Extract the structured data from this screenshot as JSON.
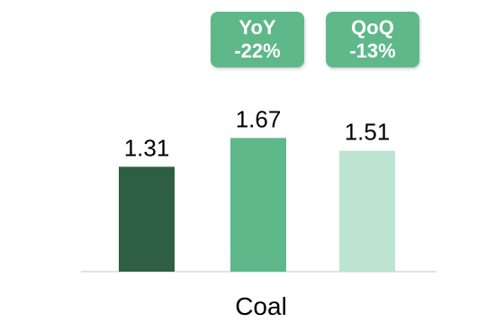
{
  "chart_data": {
    "type": "bar",
    "categories": [
      "Coal"
    ],
    "series": [
      {
        "values": [
          1.31
        ],
        "color": "#2e5e43"
      },
      {
        "values": [
          1.67
        ],
        "color": "#5fb88a"
      },
      {
        "values": [
          1.51
        ],
        "color": "#bde3d1"
      }
    ],
    "data_labels": [
      "1.31",
      "1.67",
      "1.51"
    ],
    "xlabel": "Coal",
    "ylim": [
      0,
      2.0
    ],
    "grid": false,
    "legend": "none"
  },
  "badges": {
    "yoy": {
      "label": "YoY",
      "value": "-22%",
      "color": "#5fb88a"
    },
    "qoq": {
      "label": "QoQ",
      "value": "-13%",
      "color": "#5fb88a"
    }
  }
}
